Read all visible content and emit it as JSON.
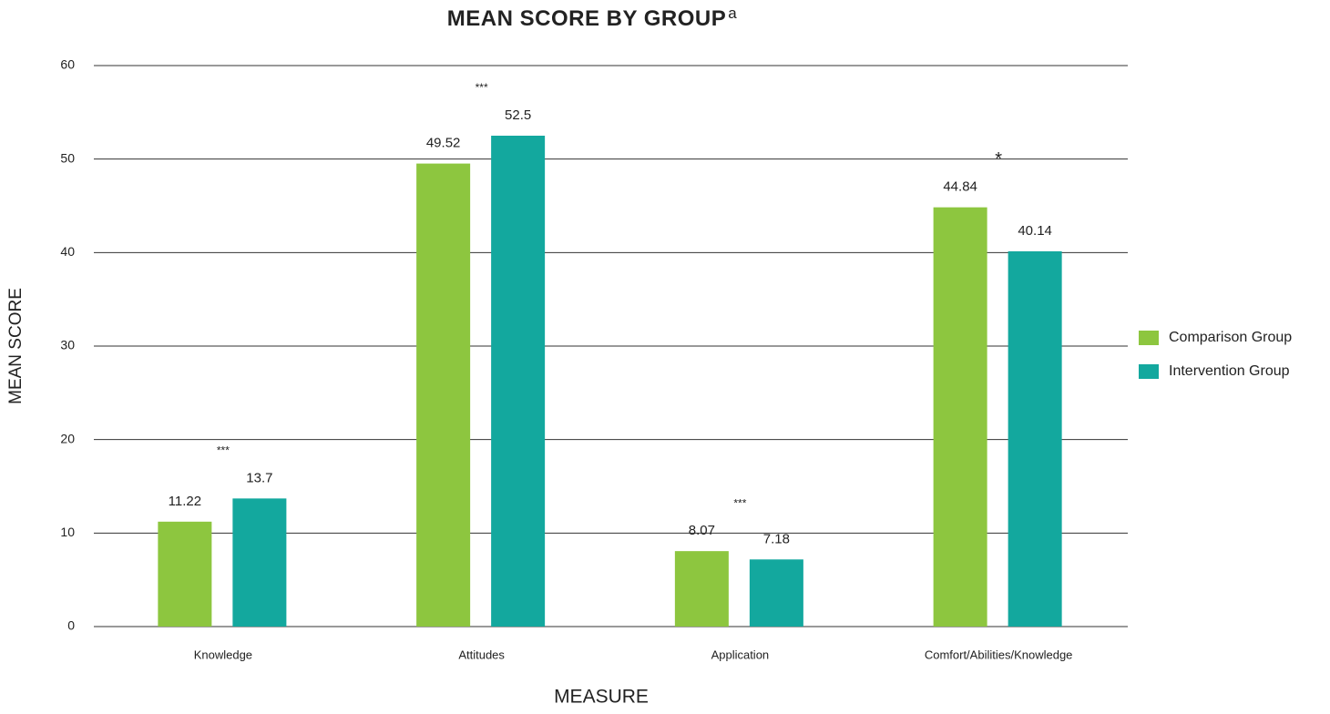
{
  "chart_data": {
    "type": "bar",
    "title": "MEAN SCORE BY GROUP",
    "title_superscript": "a",
    "x_label": "MEASURE",
    "y_label": "MEAN SCORE",
    "categories": [
      "Knowledge",
      "Attitudes",
      "Application",
      "Comfort/Abilities/Knowledge"
    ],
    "series": [
      {
        "name": "Comparison Group",
        "color": "#8dc63f",
        "values": [
          11.22,
          49.52,
          8.07,
          44.84
        ]
      },
      {
        "name": "Intervention Group",
        "color": "#13a89e",
        "values": [
          13.7,
          52.5,
          7.18,
          40.14
        ]
      }
    ],
    "significance": [
      "***",
      "***",
      "***",
      "*"
    ],
    "ylim": [
      0,
      60
    ],
    "yticks": [
      0,
      10,
      20,
      30,
      40,
      50,
      60
    ],
    "grid": true,
    "legend": "right"
  }
}
